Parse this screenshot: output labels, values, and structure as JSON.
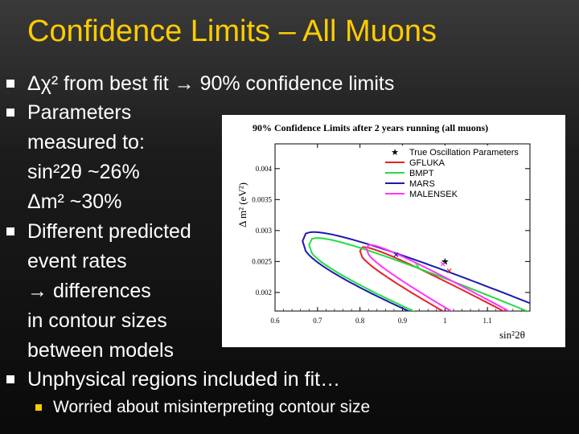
{
  "slide": {
    "title": "Confidence Limits – All Muons",
    "bullets": [
      {
        "text": "Δχ² from best fit → 90% confidence limits"
      },
      {
        "text": "Parameters",
        "cont": [
          "measured to:",
          "sin²2θ ~26%",
          "Δm² ~30%"
        ]
      },
      {
        "text": "Different predicted",
        "cont": [
          "event rates",
          "→ differences",
          "in contour sizes",
          "between models"
        ]
      },
      {
        "text": "Unphysical regions included in fit…"
      }
    ],
    "subbullets": [
      {
        "text": "Worried about misinterpreting contour size"
      }
    ],
    "colors": {
      "title": "#ffcc00",
      "text": "#ffffff",
      "subbullet": "#ffcc00"
    }
  },
  "chart_data": {
    "type": "line",
    "title": "90% Confidence Limits after 2 years running (all muons)",
    "xlabel": "sin²2θ",
    "ylabel": "Δ m² (eV²)",
    "xlim": [
      0.6,
      1.2
    ],
    "ylim": [
      0.0017,
      0.0044
    ],
    "xticks": [
      "0.6",
      "0.7",
      "0.8",
      "0.9",
      "1",
      "1.1"
    ],
    "yticks": [
      "0.002",
      "0.0025",
      "0.003",
      "0.0035",
      "0.004"
    ],
    "legend_position": "top-right",
    "series": [
      {
        "name": "True Oscillation Parameters",
        "marker": "star",
        "color": "#000000",
        "x": [
          1.0
        ],
        "y": [
          0.0025
        ]
      },
      {
        "name": "GFLUKA",
        "color": "#e8202a",
        "best_fit": {
          "x": 1.01,
          "y": 0.00235
        },
        "contour": {
          "xl": 0.8,
          "yt": 0.00293,
          "a": 0.72,
          "yr": 0.00217,
          "b": 0.0
        }
      },
      {
        "name": "BMPT",
        "color": "#22dd44",
        "best_fit": {
          "x": 0.935,
          "y": 0.00243
        },
        "contour": {
          "xl": 0.68,
          "yt": 0.0032,
          "a": 0.6,
          "yr": 0.0021,
          "b": 0.00012
        }
      },
      {
        "name": "MARS",
        "color": "#1a1ab0",
        "best_fit": {
          "x": 0.885,
          "y": 0.00261
        },
        "contour": {
          "xl": 0.665,
          "yt": 0.00337,
          "a": 0.55,
          "yr": 0.00205,
          "b": 0.0
        }
      },
      {
        "name": "MALENSEK",
        "color": "#ff33ff",
        "best_fit": {
          "x": 0.995,
          "y": 0.00246
        },
        "contour": {
          "xl": 0.815,
          "yt": 0.00296,
          "a": 0.75,
          "yr": 0.00222,
          "b": 0.0
        }
      }
    ]
  }
}
